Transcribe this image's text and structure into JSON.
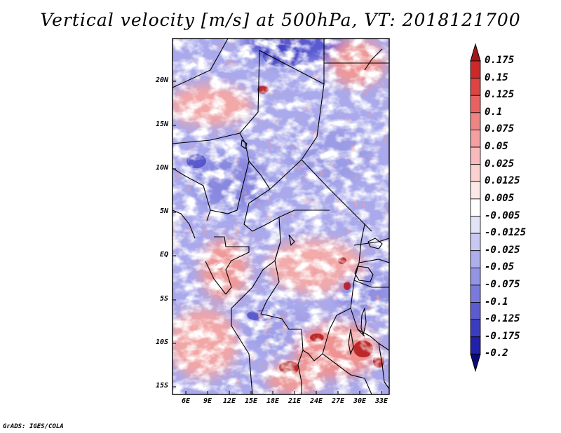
{
  "title": "Vertical velocity [m/s] at 500hPa, VT: 2018121700",
  "credit": "GrADS: IGES/COLA",
  "map": {
    "lat_labels": [
      "20N",
      "15N",
      "10N",
      "5N",
      "EQ",
      "5S",
      "10S",
      "15S"
    ],
    "lon_labels": [
      "6E",
      "9E",
      "12E",
      "15E",
      "18E",
      "21E",
      "24E",
      "27E",
      "30E",
      "33E"
    ]
  },
  "colorbar": {
    "labels": [
      "0.175",
      "0.15",
      "0.125",
      "0.1",
      "0.075",
      "0.05",
      "0.025",
      "0.0125",
      "0.005",
      "-0.005",
      "-0.0125",
      "-0.025",
      "-0.05",
      "-0.075",
      "-0.1",
      "-0.125",
      "-0.175",
      "-0.2"
    ],
    "colors": [
      "#b81c1c",
      "#cc2a2a",
      "#dd4444",
      "#e86262",
      "#ef8484",
      "#f4a0a0",
      "#f8baba",
      "#fbd2d2",
      "#fde8e8",
      "#ffffff",
      "#e2e2f8",
      "#c8c8f2",
      "#aeaeec",
      "#9494e4",
      "#7a7adc",
      "#5c5cd0",
      "#3c3cc0",
      "#2020a8",
      "#10108a"
    ],
    "top_arrow_color": "#a01818",
    "bottom_arrow_color": "#0a0a7a"
  }
}
